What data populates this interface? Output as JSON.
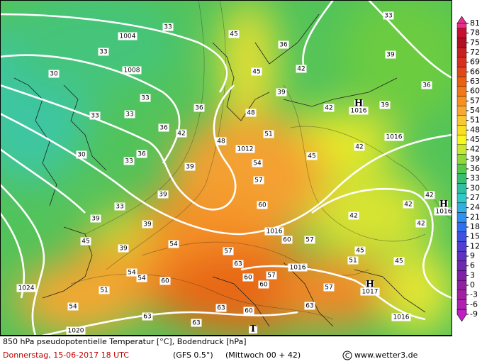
{
  "map": {
    "colorbar": {
      "ticks": [
        81,
        78,
        75,
        72,
        69,
        66,
        63,
        60,
        57,
        54,
        51,
        48,
        45,
        42,
        39,
        36,
        33,
        30,
        27,
        24,
        21,
        18,
        15,
        12,
        9,
        6,
        3,
        0,
        -3,
        -6,
        -9
      ],
      "colors": [
        "#e8308a",
        "#c8102e",
        "#b01020",
        "#c82020",
        "#d83020",
        "#e04818",
        "#e86010",
        "#f07818",
        "#f89020",
        "#f8a830",
        "#f8c830",
        "#f8e020",
        "#f8f820",
        "#c8e830",
        "#90d838",
        "#58c848",
        "#38c070",
        "#30c0a0",
        "#30c8c8",
        "#30b0e0",
        "#3090f0",
        "#3070f0",
        "#4050e0",
        "#5040d0",
        "#6030c0",
        "#7028b0",
        "#8020a8",
        "#9020a0",
        "#a020a0",
        "#b020b0",
        "#c020c0"
      ]
    },
    "isobar_labels": [
      "1004",
      "1008",
      "1012",
      "1016",
      "1016",
      "1016",
      "1016",
      "1020",
      "1024"
    ],
    "pressure_centers": [
      {
        "symbol": "H",
        "value": "1016"
      },
      {
        "symbol": "H",
        "value": "1016"
      },
      {
        "symbol": "H",
        "value": "1017"
      },
      {
        "symbol": "T"
      }
    ],
    "contour_labels": [
      "33",
      "33",
      "33",
      "30",
      "33",
      "33",
      "33",
      "36",
      "36",
      "42",
      "36",
      "33",
      "30",
      "39",
      "39",
      "33",
      "39",
      "45",
      "39",
      "39",
      "54",
      "54",
      "54",
      "60",
      "51",
      "54",
      "63",
      "63",
      "63",
      "60",
      "60",
      "60",
      "57",
      "63",
      "57",
      "60",
      "57",
      "54",
      "48",
      "51",
      "48",
      "45",
      "45",
      "36",
      "42",
      "39",
      "42",
      "45",
      "42",
      "42",
      "42",
      "42",
      "45",
      "51",
      "57",
      "63",
      "45",
      "39",
      "36",
      "39",
      "42",
      "57",
      "60"
    ],
    "footer": {
      "title": "850 hPa pseudopotentielle Temperatur [°C], Bodendruck [hPa]",
      "date": "Donnerstag, 15-06-2017   18 UTC",
      "model": "(GFS 0.5°)",
      "run": "(Mittwoch 00 + 42)",
      "source": "www.wetter3.de"
    }
  }
}
